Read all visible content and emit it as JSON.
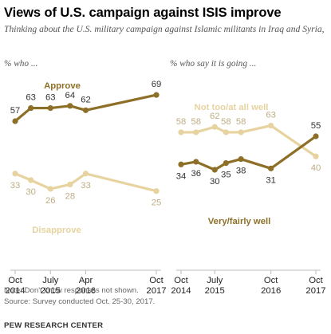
{
  "header": {
    "title": "Views of U.S. campaign against ISIS improve",
    "subtitle": "Thinking about the U.S. military campaign against Islamic militants in Iraq and Syria,"
  },
  "colors": {
    "dark": "#8d6f27",
    "light": "#e6d3a0"
  },
  "chart_data": [
    {
      "type": "line",
      "panel_label": "% who ...",
      "x": [
        "2014-10",
        "2015-02",
        "2015-07",
        "2015-12",
        "2016-04",
        "2017-10"
      ],
      "series": [
        {
          "name": "Approve",
          "values": [
            57,
            63,
            63,
            64,
            62,
            69
          ],
          "color": "#8d6f27"
        },
        {
          "name": "Disapprove",
          "values": [
            33,
            30,
            26,
            28,
            33,
            25
          ],
          "color": "#e6d3a0"
        }
      ],
      "ticks": [
        {
          "x": "2014-10",
          "line1": "Oct",
          "line2": "2014"
        },
        {
          "x": "2015-07",
          "line1": "July",
          "line2": "2015"
        },
        {
          "x": "2016-04",
          "line1": "Apr",
          "line2": "2016"
        },
        {
          "x": "2017-10",
          "line1": "Oct",
          "line2": "2017"
        }
      ]
    },
    {
      "type": "line",
      "panel_label": "% who say it is going ...",
      "x": [
        "2014-10",
        "2015-02",
        "2015-07",
        "2015-10",
        "2016-02",
        "2016-10",
        "2017-10"
      ],
      "series": [
        {
          "name": "Not too/at all well",
          "values": [
            58,
            58,
            62,
            58,
            58,
            63,
            40
          ],
          "color": "#e6d3a0"
        },
        {
          "name": "Very/fairly well",
          "values": [
            34,
            36,
            30,
            35,
            38,
            31,
            55
          ],
          "color": "#8d6f27"
        }
      ],
      "ticks": [
        {
          "x": "2014-10",
          "line1": "Oct",
          "line2": "2014"
        },
        {
          "x": "2015-07",
          "line1": "July",
          "line2": "2015"
        },
        {
          "x": "2016-10",
          "line1": "Oct",
          "line2": "2016"
        },
        {
          "x": "2017-10",
          "line1": "Oct",
          "line2": "2017"
        }
      ]
    }
  ],
  "footer": {
    "note": "Note: Don't know responses not shown.",
    "source": "Source: Survey conducted Oct. 25-30, 2017.",
    "org": "PEW RESEARCH CENTER"
  }
}
